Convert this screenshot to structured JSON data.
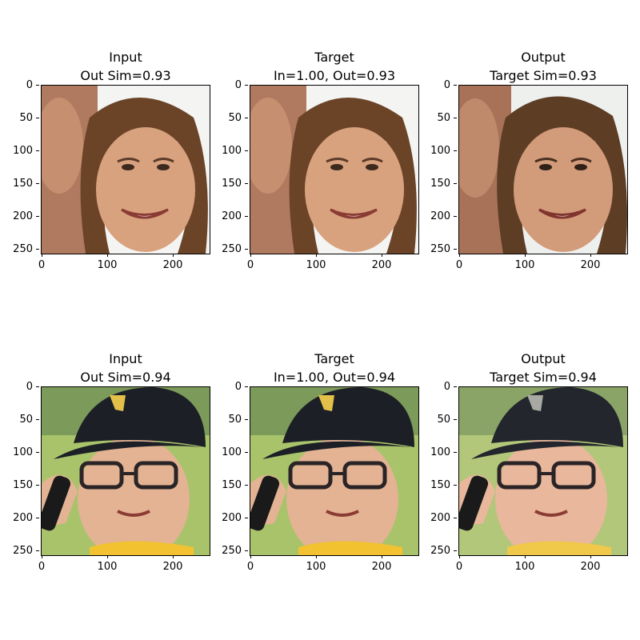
{
  "figure": {
    "panels": [
      {
        "id": "r1c1",
        "title_line1": "Input",
        "title_line2": "Out Sim=0.93",
        "image": "woman-face-input-image"
      },
      {
        "id": "r1c2",
        "title_line1": "Target",
        "title_line2": "In=1.00, Out=0.93",
        "image": "woman-face-target-image"
      },
      {
        "id": "r1c3",
        "title_line1": "Output",
        "title_line2": "Target Sim=0.93",
        "image": "woman-face-output-image"
      },
      {
        "id": "r2c1",
        "title_line1": "Input",
        "title_line2": "Out Sim=0.94",
        "image": "boy-cap-input-image"
      },
      {
        "id": "r2c2",
        "title_line1": "Target",
        "title_line2": "In=1.00, Out=0.94",
        "image": "boy-cap-target-image"
      },
      {
        "id": "r2c3",
        "title_line1": "Output",
        "title_line2": "Target Sim=0.94",
        "image": "boy-cap-output-image"
      }
    ],
    "y_ticks": [
      "0",
      "50",
      "100",
      "150",
      "200",
      "250"
    ],
    "x_ticks": [
      "0",
      "100",
      "200"
    ],
    "colors": {
      "axis": "#000000",
      "skin": "#d9a27e",
      "hair": "#6b4428",
      "cap": "#1c1f26",
      "cap_logo": "#e3c04a",
      "grass": "#a9c36b",
      "shirt": "#f2c230",
      "sky": "#f4f4f2"
    }
  }
}
